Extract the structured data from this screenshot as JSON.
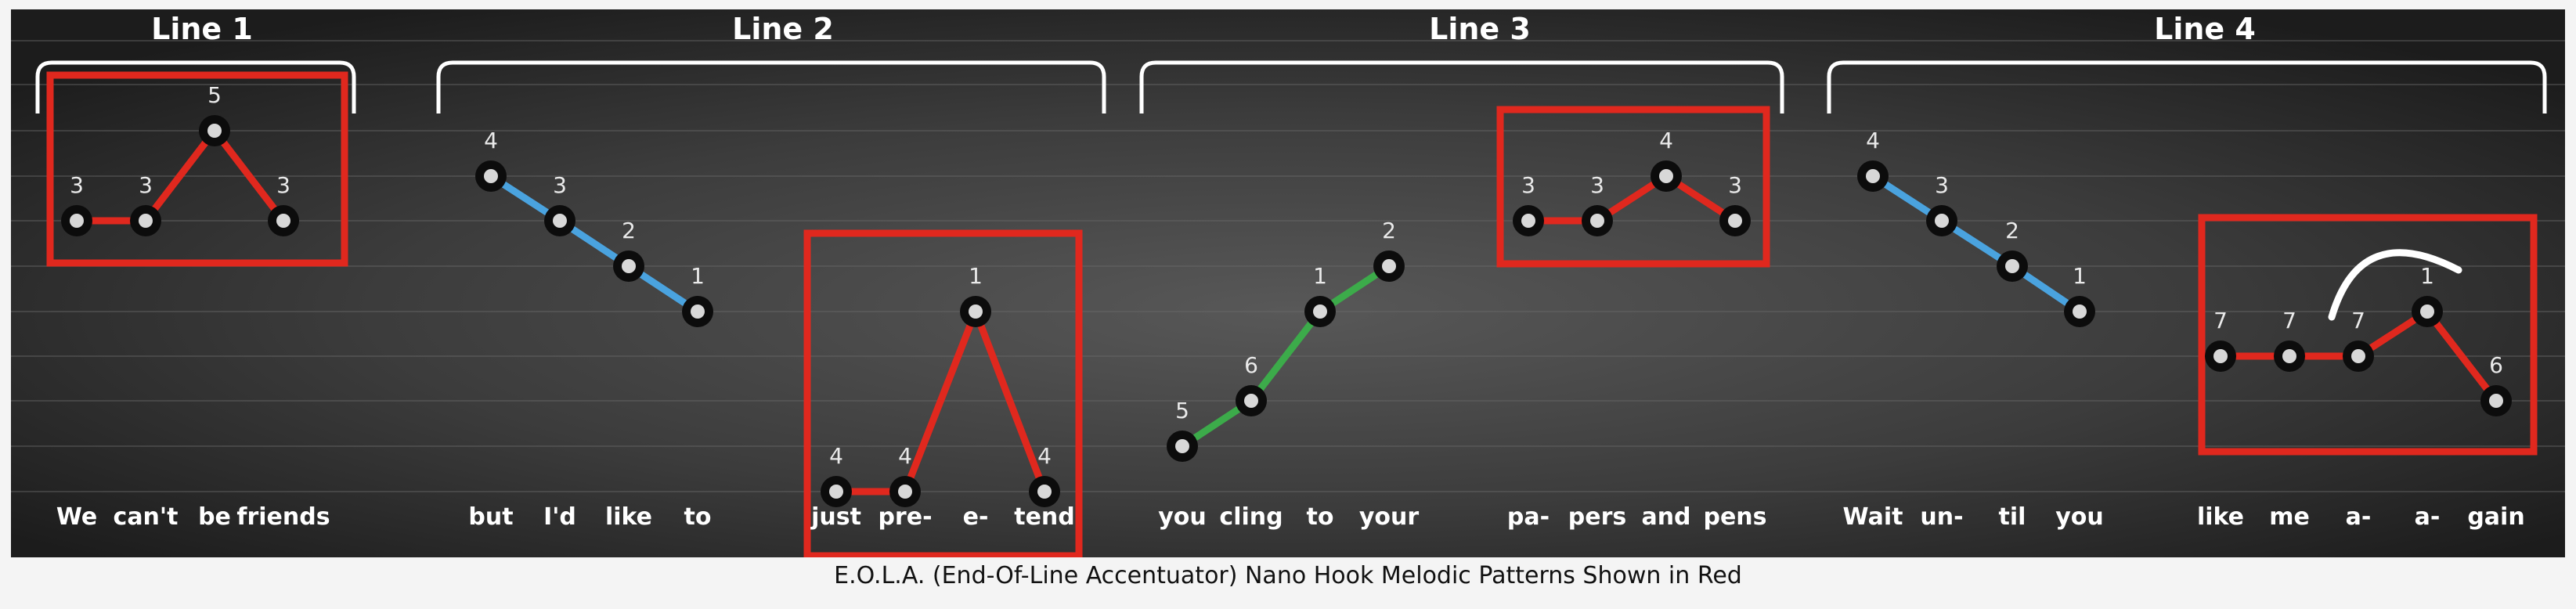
{
  "caption": "E.O.L.A. (End-Of-Line Accentuator) Nano Hook Melodic Patterns Shown in Red",
  "colors": {
    "red": "#e0281e",
    "blue": "#4aa3df",
    "green": "#3cab4a",
    "bracket": "#ffffff"
  },
  "scale": {
    "levels": [
      1,
      2,
      3,
      4,
      5,
      6,
      7
    ]
  },
  "lines": [
    {
      "label": "Line 1",
      "segments": [
        {
          "color": "red",
          "highlighted": true,
          "points": [
            {
              "word": "We",
              "level": 3
            },
            {
              "word": "can't",
              "level": 3
            },
            {
              "word": "be",
              "level": 5
            },
            {
              "word": "friends",
              "level": 3
            }
          ]
        }
      ]
    },
    {
      "label": "Line 2",
      "segments": [
        {
          "color": "blue",
          "highlighted": false,
          "points": [
            {
              "word": "but",
              "level": 4
            },
            {
              "word": "I'd",
              "level": 3
            },
            {
              "word": "like",
              "level": 2
            },
            {
              "word": "to",
              "level": 1
            }
          ]
        },
        {
          "color": "red",
          "highlighted": true,
          "points": [
            {
              "word": "just",
              "level": 4
            },
            {
              "word": "pre-",
              "level": 4
            },
            {
              "word": "e-",
              "level": 1
            },
            {
              "word": "tend",
              "level": 4
            }
          ]
        }
      ]
    },
    {
      "label": "Line 3",
      "segments": [
        {
          "color": "green",
          "highlighted": false,
          "points": [
            {
              "word": "you",
              "level": 5
            },
            {
              "word": "cling",
              "level": 6
            },
            {
              "word": "to",
              "level": 1
            },
            {
              "word": "your",
              "level": 2
            }
          ]
        },
        {
          "color": "red",
          "highlighted": true,
          "points": [
            {
              "word": "pa-",
              "level": 3
            },
            {
              "word": "pers",
              "level": 3
            },
            {
              "word": "and",
              "level": 4
            },
            {
              "word": "pens",
              "level": 3
            }
          ]
        }
      ]
    },
    {
      "label": "Line 4",
      "segments": [
        {
          "color": "blue",
          "highlighted": false,
          "points": [
            {
              "word": "Wait",
              "level": 4
            },
            {
              "word": "un-",
              "level": 3
            },
            {
              "word": "til",
              "level": 2
            },
            {
              "word": "you",
              "level": 1
            }
          ]
        },
        {
          "color": "red",
          "highlighted": true,
          "hook_arc": true,
          "points": [
            {
              "word": "like",
              "level": 7
            },
            {
              "word": "me",
              "level": 7
            },
            {
              "word": "a-",
              "level": 7
            },
            {
              "word": "a-",
              "level": 1
            },
            {
              "word": "gain",
              "level": 6
            }
          ]
        }
      ]
    }
  ]
}
